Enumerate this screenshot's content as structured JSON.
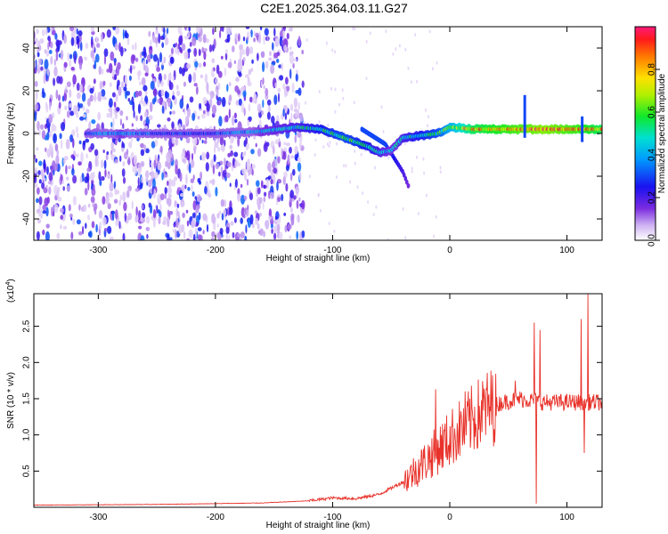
{
  "title": "C2E1.2025.364.03.11.G27",
  "chart_data": [
    {
      "type": "heatmap",
      "name": "spectrogram",
      "xlabel": "Height of straight line (km)",
      "ylabel": "Frequency (Hz)",
      "xlim": [
        -355,
        130
      ],
      "ylim": [
        -50,
        50
      ],
      "xticks": [
        -300,
        -200,
        -100,
        0,
        100
      ],
      "xtick_labels": [
        "-300",
        "-200",
        "-100",
        "0",
        "100"
      ],
      "yticks": [
        -40,
        -20,
        0,
        20,
        40
      ],
      "ytick_labels": [
        "-40",
        "-20",
        "0",
        "20",
        "40"
      ],
      "colorbar": {
        "label": "Normalized spectral amplitude",
        "range": [
          0,
          1
        ],
        "ticks": [
          0.0,
          0.2,
          0.4,
          0.6,
          0.8
        ],
        "tick_labels": [
          "0.0",
          "0.2",
          "0.4",
          "0.6",
          "0.8"
        ]
      },
      "noise_region_x": [
        -355,
        -125
      ],
      "main_trace": [
        {
          "x": -310,
          "y": 0,
          "amp": 0.3
        },
        {
          "x": -280,
          "y": 0,
          "amp": 0.45
        },
        {
          "x": -250,
          "y": 0,
          "amp": 0.3
        },
        {
          "x": -200,
          "y": 0,
          "amp": 0.3
        },
        {
          "x": -160,
          "y": 1,
          "amp": 0.45
        },
        {
          "x": -130,
          "y": 3,
          "amp": 0.5
        },
        {
          "x": -110,
          "y": 2,
          "amp": 0.55
        },
        {
          "x": -90,
          "y": -2,
          "amp": 0.6
        },
        {
          "x": -70,
          "y": -6,
          "amp": 0.55
        },
        {
          "x": -60,
          "y": -9,
          "amp": 0.5
        },
        {
          "x": -50,
          "y": -8,
          "amp": 0.45
        },
        {
          "x": -40,
          "y": -2,
          "amp": 0.5
        },
        {
          "x": -25,
          "y": -1,
          "amp": 0.55
        },
        {
          "x": -10,
          "y": 0,
          "amp": 0.6
        },
        {
          "x": 0,
          "y": 3,
          "amp": 0.7
        },
        {
          "x": 20,
          "y": 2,
          "amp": 0.85
        },
        {
          "x": 50,
          "y": 2,
          "amp": 0.9
        },
        {
          "x": 80,
          "y": 2,
          "amp": 0.95
        },
        {
          "x": 110,
          "y": 2,
          "amp": 0.9
        },
        {
          "x": 130,
          "y": 2,
          "amp": 0.85
        }
      ],
      "secondary_branch": [
        {
          "x": -75,
          "y": 2,
          "amp": 0.3
        },
        {
          "x": -55,
          "y": -5,
          "amp": 0.3
        },
        {
          "x": -40,
          "y": -18,
          "amp": 0.2
        },
        {
          "x": -35,
          "y": -25,
          "amp": 0.15
        }
      ],
      "spikes": [
        {
          "x": 64,
          "y_from": -2,
          "y_to": 18
        },
        {
          "x": 113,
          "y_from": -4,
          "y_to": 8
        }
      ]
    },
    {
      "type": "line",
      "name": "snr",
      "xlabel": "Height of straight line (km)",
      "ylabel": "SNR (10 * v/v)",
      "scale_label": "(x10",
      "scale_exp": "4",
      "scale_suffix": ")",
      "xlim": [
        -355,
        130
      ],
      "ylim": [
        0,
        2.95
      ],
      "xticks": [
        -300,
        -200,
        -100,
        0,
        100
      ],
      "xtick_labels": [
        "-300",
        "-200",
        "-100",
        "0",
        "100"
      ],
      "yticks": [
        0.5,
        1.0,
        1.5,
        2.0,
        2.5
      ],
      "ytick_labels": [
        "0.5",
        "1.0",
        "1.5",
        "2.0",
        "2.5"
      ],
      "color": "#e8322a",
      "envelope": [
        {
          "x": -355,
          "y": 0.03
        },
        {
          "x": -250,
          "y": 0.04
        },
        {
          "x": -160,
          "y": 0.06
        },
        {
          "x": -120,
          "y": 0.09
        },
        {
          "x": -100,
          "y": 0.13
        },
        {
          "x": -80,
          "y": 0.12
        },
        {
          "x": -60,
          "y": 0.18
        },
        {
          "x": -40,
          "y": 0.35
        },
        {
          "x": -20,
          "y": 0.65
        },
        {
          "x": 0,
          "y": 0.95
        },
        {
          "x": 15,
          "y": 1.15
        },
        {
          "x": 30,
          "y": 1.35
        },
        {
          "x": 45,
          "y": 1.45
        },
        {
          "x": 60,
          "y": 1.5
        },
        {
          "x": 80,
          "y": 1.45
        },
        {
          "x": 100,
          "y": 1.45
        },
        {
          "x": 130,
          "y": 1.45
        }
      ],
      "spikes": [
        {
          "x": -12,
          "y": 1.63
        },
        {
          "x": 13,
          "y": 1.6
        },
        {
          "x": 56,
          "y": 1.75
        },
        {
          "x": 72,
          "y": 2.55
        },
        {
          "x": 74,
          "y": 0.05
        },
        {
          "x": 77,
          "y": 2.45
        },
        {
          "x": 112,
          "y": 2.6
        },
        {
          "x": 115,
          "y": 0.75
        },
        {
          "x": 118,
          "y": 2.95
        }
      ]
    }
  ]
}
